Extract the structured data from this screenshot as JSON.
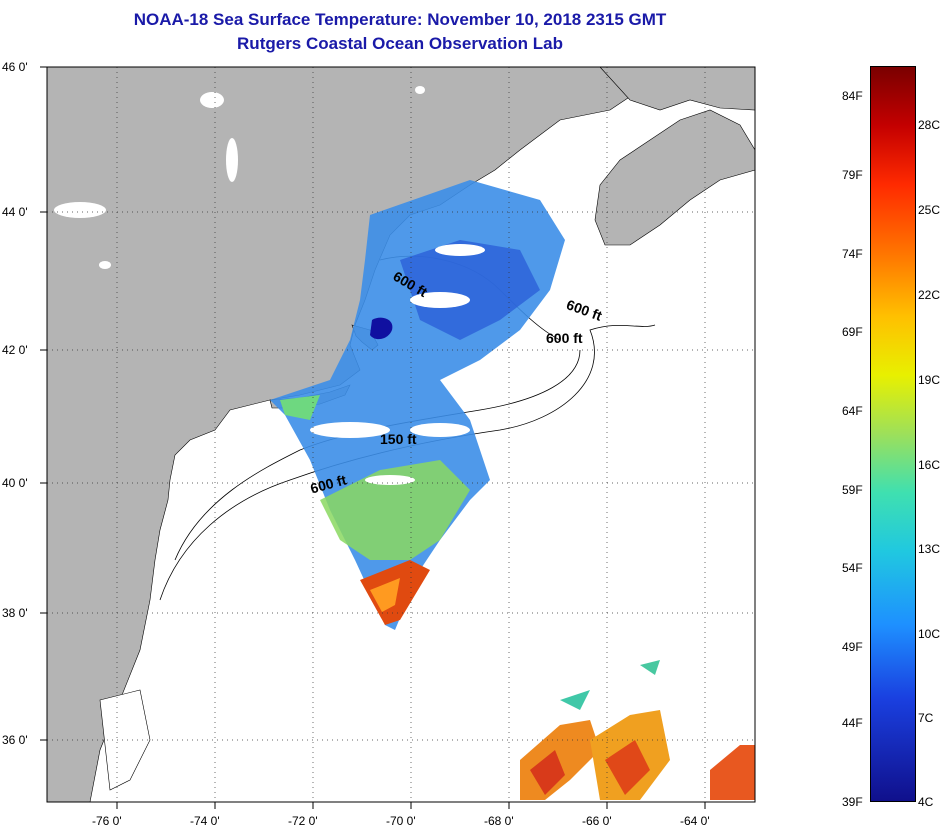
{
  "title": {
    "line1": "NOAA-18 Sea Surface Temperature:  November 10, 2018 2315 GMT",
    "line2": "Rutgers Coastal Ocean Observation Lab"
  },
  "map": {
    "lat_labels": [
      "46 0'",
      "44 0'",
      "42 0'",
      "40 0'",
      "38 0'",
      "36 0'"
    ],
    "lon_labels": [
      "-76 0'",
      "-74 0'",
      "-72 0'",
      "-70 0'",
      "-68 0'",
      "-66 0'",
      "-64 0'"
    ],
    "contour_labels": [
      "600 ft",
      "600 ft",
      "600 ft",
      "150 ft",
      "600 ft"
    ],
    "colors": {
      "land": "#b4b4b4",
      "water": "#ffffff",
      "title": "#1a1aa8"
    }
  },
  "colorbar": {
    "f_labels": [
      "84F",
      "79F",
      "74F",
      "69F",
      "64F",
      "59F",
      "54F",
      "49F",
      "44F",
      "39F"
    ],
    "c_labels": [
      "28C",
      "25C",
      "22C",
      "19C",
      "16C",
      "13C",
      "10C",
      "7C",
      "4C"
    ]
  }
}
